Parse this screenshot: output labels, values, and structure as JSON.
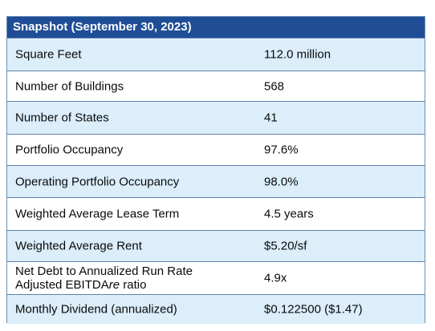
{
  "header": {
    "title": "Snapshot (September 30, 2023)"
  },
  "rows": [
    {
      "label": "Square Feet",
      "value": "112.0 million"
    },
    {
      "label": "Number of Buildings",
      "value": "568"
    },
    {
      "label": "Number of States",
      "value": "41"
    },
    {
      "label": "Portfolio Occupancy",
      "value": "97.6%"
    },
    {
      "label": "Operating Portfolio Occupancy",
      "value": "98.0%"
    },
    {
      "label": "Weighted Average Lease Term",
      "value": "4.5 years"
    },
    {
      "label": "Weighted Average Rent",
      "value": "$5.20/sf"
    },
    {
      "label_line1": "Net Debt to Annualized Run Rate",
      "label_line2_prefix": "Adjusted EBITDA",
      "label_line2_italic": "re",
      "label_line2_suffix": " ratio",
      "value": "4.9x"
    },
    {
      "label": "Monthly Dividend (annualized)",
      "value": "$0.122500 ($1.47)"
    }
  ],
  "colors": {
    "header_bg": "#1f4e96",
    "alt_row_bg": "#dbeefa",
    "border": "#5f7fa8"
  }
}
